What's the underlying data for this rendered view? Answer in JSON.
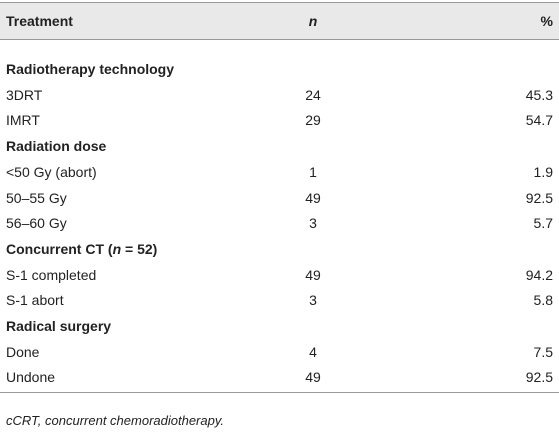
{
  "table": {
    "header": [
      "Treatment",
      "n",
      "%"
    ],
    "sections": [
      {
        "title": "Radiotherapy technology",
        "rows": [
          [
            "3DRT",
            24,
            45.3
          ],
          [
            "IMRT",
            29,
            54.7
          ]
        ]
      },
      {
        "title": "Radiation dose",
        "rows": [
          [
            "<50 Gy (abort)",
            1,
            1.9
          ],
          [
            "50–55 Gy",
            49,
            92.5
          ],
          [
            "56–60 Gy",
            3,
            5.7
          ]
        ]
      },
      {
        "title": [
          "Concurrent CT (",
          "n",
          " = 52)"
        ],
        "rows": [
          [
            "S-1 completed",
            49,
            94.2
          ],
          [
            "S-1 abort",
            3,
            5.8
          ]
        ]
      },
      {
        "title": "Radical surgery",
        "rows": [
          [
            "Done",
            4,
            7.5
          ],
          [
            "Undone",
            49,
            92.5
          ]
        ]
      }
    ]
  },
  "footnote": "cCRT, concurrent chemoradiotherapy."
}
